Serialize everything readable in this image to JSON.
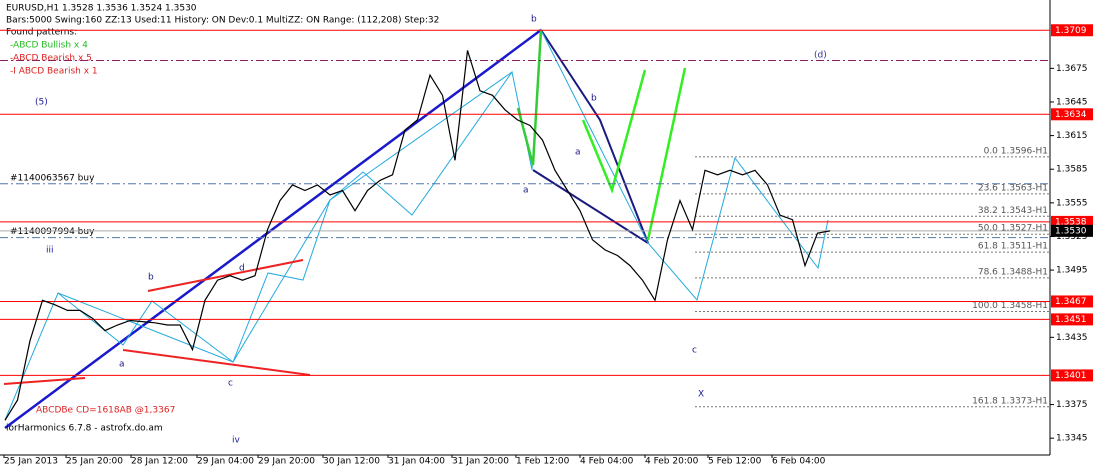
{
  "chart_data": {
    "type": "line",
    "title": "EURUSD,H1  1.3528 1.3536 1.3524 1.3530",
    "subtitle": "Bars:5000  Swing:160  ZZ:13  Used:11  History: ON Dev:0.1  MultiZZ: ON  Range: (112,208)  Step:32",
    "legend_title": "Found patterns:",
    "legend": [
      {
        "text": "-ABCD Bullish x 4",
        "color": "#22bb22"
      },
      {
        "text": "-ABCD Bearish x 5",
        "color": "#dd2222"
      },
      {
        "text": "-I ABCD Bearish x 1",
        "color": "#dd2222"
      }
    ],
    "x_labels": [
      "25 Jan 2013",
      "25 Jan 20:00",
      "28 Jan 12:00",
      "29 Jan 04:00",
      "29 Jan 20:00",
      "30 Jan 12:00",
      "31 Jan 04:00",
      "31 Jan 20:00",
      "1 Feb 12:00",
      "4 Feb 04:00",
      "4 Feb 20:00",
      "5 Feb 12:00",
      "6 Feb 04:00"
    ],
    "values": [
      1.3361,
      1.3379,
      1.3432,
      1.3468,
      1.3464,
      1.3459,
      1.3459,
      1.3452,
      1.3441,
      1.3446,
      1.345,
      1.3449,
      1.3448,
      1.3446,
      1.3446,
      1.3424,
      1.3468,
      1.3486,
      1.349,
      1.3486,
      1.349,
      1.3531,
      1.3557,
      1.3571,
      1.3566,
      1.3571,
      1.3562,
      1.3566,
      1.3548,
      1.3566,
      1.3575,
      1.358,
      1.362,
      1.3629,
      1.3669,
      1.3651,
      1.3593,
      1.3691,
      1.3655,
      1.3651,
      1.3638,
      1.3629,
      1.3624,
      1.3611,
      1.3584,
      1.3566,
      1.3548,
      1.3522,
      1.3513,
      1.3508,
      1.3499,
      1.3486,
      1.3468,
      1.3522,
      1.3557,
      1.3531,
      1.3584,
      1.358,
      1.3584,
      1.358,
      1.3584,
      1.3571,
      1.3544,
      1.354,
      1.3499,
      1.3528,
      1.353
    ],
    "color": "#000000",
    "ylim": [
      1.333,
      1.3736
    ],
    "yticks": [
      1.3675,
      1.3645,
      1.3615,
      1.3585,
      1.3555,
      1.3525,
      1.3495,
      1.3435,
      1.3375,
      1.3345
    ],
    "levels": [
      1.3709,
      1.3634,
      1.3538,
      1.3467,
      1.3451,
      1.3401
    ],
    "level_color": "#ff0000",
    "current_price": {
      "value": 1.353,
      "label": "1.3530"
    },
    "dashdot_line": 1.3682,
    "fib": [
      {
        "label": "0.0 1.3596-H1",
        "value": 1.3596
      },
      {
        "label": "23.6 1.3563-H1",
        "value": 1.3563
      },
      {
        "label": "38.2 1.3543-H1",
        "value": 1.3543
      },
      {
        "label": "50.0 1.3527-H1",
        "value": 1.3527
      },
      {
        "label": "61.8 1.3511-H1",
        "value": 1.3511
      },
      {
        "label": "78.6 1.3488-H1",
        "value": 1.3488
      },
      {
        "label": "100.0 1.3458-H1",
        "value": 1.3458
      },
      {
        "label": "161.8 1.3373-H1",
        "value": 1.3373
      }
    ],
    "orders": [
      {
        "label": "#1140063567 buy",
        "value": 1.3572
      },
      {
        "label": "#1140097994 buy",
        "value": 1.3524
      }
    ],
    "annotations": [
      {
        "text": "(5)",
        "color": "#1a1aa0"
      },
      {
        "text": "(d)",
        "color": "#333399"
      },
      {
        "text": "b",
        "color": "#1a1a80"
      },
      {
        "text": "b",
        "color": "#1a1a80"
      },
      {
        "text": "a",
        "color": "#1a1a80"
      },
      {
        "text": "a",
        "color": "#1a1a80"
      },
      {
        "text": "iii",
        "color": "#1a1aa0"
      },
      {
        "text": "b",
        "color": "#1a1a80"
      },
      {
        "text": "d",
        "color": "#1a1a80"
      },
      {
        "text": "a",
        "color": "#1a1a80"
      },
      {
        "text": "c",
        "color": "#1a1a80"
      },
      {
        "text": "c",
        "color": "#1a1a80"
      },
      {
        "text": "X",
        "color": "#1a1aa0"
      },
      {
        "text": "iv",
        "color": "#1a1aa0"
      },
      {
        "text": "ABCDBe CD=1618AB  @1,3367",
        "color": "#dd2222"
      },
      {
        "text": "iorHarmonics 6.7.8 - astrofx.do.am",
        "color": "#000000"
      }
    ]
  }
}
